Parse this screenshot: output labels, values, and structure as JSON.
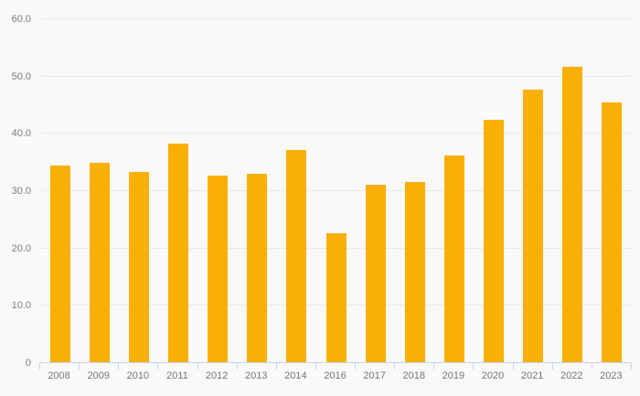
{
  "chart_data": {
    "type": "bar",
    "title": "",
    "xlabel": "",
    "ylabel": "",
    "categories": [
      "2008",
      "2009",
      "2010",
      "2011",
      "2012",
      "2013",
      "2014",
      "2016",
      "2017",
      "2018",
      "2019",
      "2020",
      "2021",
      "2022",
      "2023"
    ],
    "values": [
      34.3,
      34.8,
      33.2,
      38.1,
      32.6,
      32.9,
      37.1,
      22.5,
      31.0,
      31.4,
      36.1,
      42.3,
      47.5,
      51.5,
      45.3
    ],
    "ylim": [
      0,
      60
    ],
    "yticks": [
      0,
      10,
      20,
      30,
      40,
      50,
      60
    ],
    "ytick_labels": [
      "0",
      "10.0",
      "20.0",
      "30.0",
      "40.0",
      "50.0",
      "60.0"
    ],
    "grid": "horizontal",
    "legend": "none"
  },
  "colors": {
    "bar": "#f9af05",
    "background": "#f9f9f9",
    "gridline": "#e8e8e8",
    "axis_line": "#c9d4e4",
    "label_text": "#7b7b7b"
  }
}
